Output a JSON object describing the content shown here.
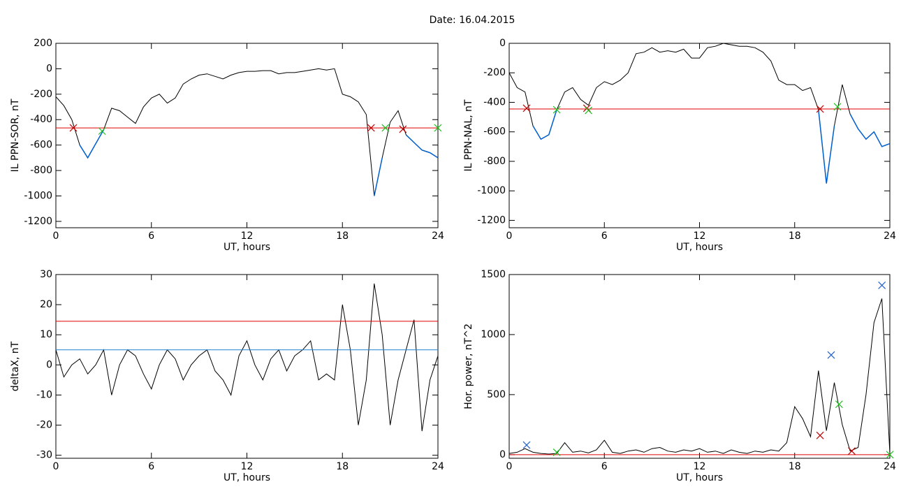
{
  "title": "Date:  16.04.2015",
  "chart_data": [
    {
      "type": "line",
      "ylabel": "IL PPN-SOR, nT",
      "xlabel": "UT, hours",
      "xlim": [
        0,
        24
      ],
      "xticks": [
        0,
        6,
        12,
        18,
        24
      ],
      "ylim": [
        -1250,
        200
      ],
      "yticks": [
        200,
        0,
        -200,
        -400,
        -600,
        -800,
        -1000,
        -1200
      ],
      "x": [
        0,
        0.5,
        1,
        1.5,
        2,
        2.5,
        3,
        3.5,
        4,
        4.5,
        5,
        5.5,
        6,
        6.5,
        7,
        7.5,
        8,
        8.5,
        9,
        9.5,
        10,
        10.5,
        11,
        11.5,
        12,
        12.5,
        13,
        13.5,
        14,
        14.5,
        15,
        15.5,
        16,
        16.5,
        17,
        17.5,
        18,
        18.5,
        19,
        19.5,
        20,
        20.5,
        21,
        21.5,
        22,
        22.5,
        23,
        23.5,
        24
      ],
      "series": [
        {
          "color": "#000000",
          "below_color": "#0060d0",
          "values": [
            -220,
            -290,
            -400,
            -600,
            -700,
            -590,
            -480,
            -310,
            -330,
            -380,
            -430,
            -300,
            -230,
            -200,
            -270,
            -230,
            -120,
            -80,
            -50,
            -40,
            -60,
            -80,
            -50,
            -30,
            -20,
            -20,
            -15,
            -15,
            -40,
            -30,
            -30,
            -20,
            -10,
            0,
            -10,
            0,
            -200,
            -220,
            -260,
            -360,
            -1000,
            -700,
            -420,
            -330,
            -520,
            -580,
            -640,
            -660,
            -700
          ]
        }
      ],
      "reference_lines": [
        {
          "value": -465,
          "color": "#e00000"
        }
      ],
      "markers": [
        {
          "x": 1.1,
          "y": -465,
          "color": "#c00000"
        },
        {
          "x": 2.9,
          "y": -490,
          "color": "#20c020"
        },
        {
          "x": 19.8,
          "y": -465,
          "color": "#c00000"
        },
        {
          "x": 20.7,
          "y": -465,
          "color": "#20c020"
        },
        {
          "x": 21.8,
          "y": -475,
          "color": "#c00000"
        },
        {
          "x": 24,
          "y": -465,
          "color": "#20c020"
        }
      ]
    },
    {
      "type": "line",
      "ylabel": "IL PPN-NAL, nT",
      "xlabel": "UT, hours",
      "xlim": [
        0,
        24
      ],
      "xticks": [
        0,
        6,
        12,
        18,
        24
      ],
      "ylim": [
        -1250,
        0
      ],
      "yticks": [
        0,
        -200,
        -400,
        -600,
        -800,
        -1000,
        -1200
      ],
      "x": [
        0,
        0.5,
        1,
        1.5,
        2,
        2.5,
        3,
        3.5,
        4,
        4.5,
        5,
        5.5,
        6,
        6.5,
        7,
        7.5,
        8,
        8.5,
        9,
        9.5,
        10,
        10.5,
        11,
        11.5,
        12,
        12.5,
        13,
        13.5,
        14,
        14.5,
        15,
        15.5,
        16,
        16.5,
        17,
        17.5,
        18,
        18.5,
        19,
        19.5,
        20,
        20.5,
        21,
        21.5,
        22,
        22.5,
        23,
        23.5,
        24
      ],
      "series": [
        {
          "color": "#000000",
          "below_color": "#0060d0",
          "values": [
            -200,
            -300,
            -330,
            -560,
            -650,
            -620,
            -450,
            -330,
            -300,
            -380,
            -420,
            -300,
            -260,
            -280,
            -250,
            -200,
            -70,
            -60,
            -30,
            -60,
            -50,
            -60,
            -40,
            -100,
            -100,
            -30,
            -20,
            0,
            -10,
            -20,
            -20,
            -30,
            -60,
            -120,
            -250,
            -280,
            -280,
            -320,
            -300,
            -450,
            -950,
            -560,
            -280,
            -480,
            -580,
            -650,
            -600,
            -700,
            -680
          ]
        }
      ],
      "reference_lines": [
        {
          "value": -445,
          "color": "#e00000"
        }
      ],
      "markers": [
        {
          "x": 1.1,
          "y": -440,
          "color": "#c00000"
        },
        {
          "x": 3,
          "y": -450,
          "color": "#20c020"
        },
        {
          "x": 4.9,
          "y": -440,
          "color": "#c00000"
        },
        {
          "x": 5,
          "y": -455,
          "color": "#20c020"
        },
        {
          "x": 19.6,
          "y": -445,
          "color": "#c00000"
        },
        {
          "x": 20.7,
          "y": -430,
          "color": "#20c020"
        }
      ]
    },
    {
      "type": "line",
      "ylabel": "deltaX, nT",
      "xlabel": "UT, hours",
      "xlim": [
        0,
        24
      ],
      "xticks": [
        0,
        6,
        12,
        18,
        24
      ],
      "ylim": [
        -31,
        30
      ],
      "yticks": [
        30,
        20,
        10,
        0,
        -10,
        -20,
        -30
      ],
      "x": [
        0,
        0.5,
        1,
        1.5,
        2,
        2.5,
        3,
        3.5,
        4,
        4.5,
        5,
        5.5,
        6,
        6.5,
        7,
        7.5,
        8,
        8.5,
        9,
        9.5,
        10,
        10.5,
        11,
        11.5,
        12,
        12.5,
        13,
        13.5,
        14,
        14.5,
        15,
        15.5,
        16,
        16.5,
        17,
        17.5,
        18,
        18.5,
        19,
        19.5,
        20,
        20.5,
        21,
        21.5,
        22,
        22.5,
        23,
        23.5,
        24
      ],
      "series": [
        {
          "color": "#000000",
          "values": [
            5,
            -4,
            0,
            2,
            -3,
            0,
            5,
            -10,
            0,
            5,
            3,
            -3,
            -8,
            0,
            5,
            2,
            -5,
            0,
            3,
            5,
            -2,
            -5,
            -10,
            3,
            8,
            0,
            -5,
            2,
            5,
            -2,
            3,
            5,
            8,
            -5,
            -3,
            -5,
            20,
            5,
            -20,
            -5,
            27,
            10,
            -20,
            -5,
            5,
            15,
            -22,
            -5,
            3
          ]
        }
      ],
      "reference_lines": [
        {
          "value": 14.5,
          "color": "#e00000"
        },
        {
          "value": 5,
          "color": "#2080d0"
        }
      ],
      "markers": []
    },
    {
      "type": "line",
      "ylabel": "Hor. power, nT^2",
      "xlabel": "UT, hours",
      "xlim": [
        0,
        24
      ],
      "xticks": [
        0,
        6,
        12,
        18,
        24
      ],
      "ylim": [
        -30,
        1500
      ],
      "yticks": [
        0,
        500,
        1000,
        1500
      ],
      "x": [
        0,
        0.5,
        1,
        1.5,
        2,
        2.5,
        3,
        3.5,
        4,
        4.5,
        5,
        5.5,
        6,
        6.5,
        7,
        7.5,
        8,
        8.5,
        9,
        9.5,
        10,
        10.5,
        11,
        11.5,
        12,
        12.5,
        13,
        13.5,
        14,
        14.5,
        15,
        15.5,
        16,
        16.5,
        17,
        17.5,
        18,
        18.5,
        19,
        19.5,
        20,
        20.5,
        21,
        21.5,
        22,
        22.5,
        23,
        23.5,
        24
      ],
      "series": [
        {
          "color": "#000000",
          "values": [
            10,
            20,
            50,
            20,
            10,
            5,
            10,
            100,
            20,
            30,
            15,
            40,
            120,
            20,
            10,
            30,
            40,
            20,
            50,
            60,
            30,
            20,
            40,
            30,
            50,
            20,
            30,
            10,
            40,
            20,
            10,
            30,
            20,
            40,
            30,
            100,
            400,
            300,
            150,
            700,
            200,
            600,
            250,
            30,
            60,
            500,
            1100,
            1300,
            10
          ]
        }
      ],
      "reference_lines": [
        {
          "value": 0,
          "color": "#e00000"
        }
      ],
      "markers": [
        {
          "x": 1.1,
          "y": 80,
          "color": "#2060d0"
        },
        {
          "x": 3,
          "y": 20,
          "color": "#20c020"
        },
        {
          "x": 19.6,
          "y": 160,
          "color": "#c00000"
        },
        {
          "x": 20.3,
          "y": 830,
          "color": "#2060d0"
        },
        {
          "x": 20.8,
          "y": 420,
          "color": "#20c020"
        },
        {
          "x": 21.6,
          "y": 30,
          "color": "#c00000"
        },
        {
          "x": 23.5,
          "y": 1410,
          "color": "#2060d0"
        },
        {
          "x": 24,
          "y": 0,
          "color": "#20c020"
        }
      ]
    }
  ]
}
